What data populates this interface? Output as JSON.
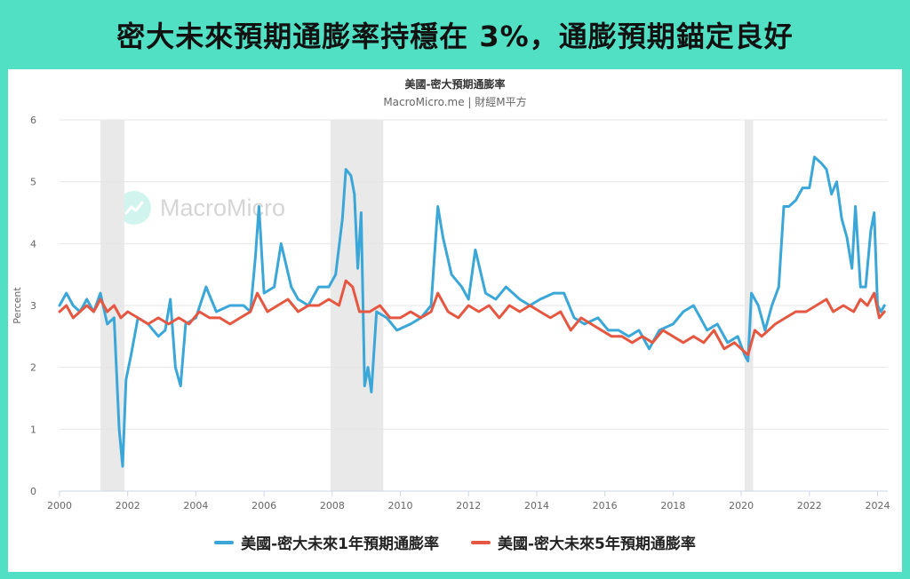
{
  "headline": "密大未來預期通膨率持穩在 3%，通膨預期錨定良好",
  "chart_data": {
    "type": "line",
    "title": "美國-密大預期通膨率",
    "subtitle": "MacroMicro.me | 財經M平方",
    "watermark": "MacroMicro",
    "ylabel": "Percent",
    "xlabel": "",
    "ylim": [
      0,
      6
    ],
    "xlim": [
      2000,
      2024.3
    ],
    "y_ticks": [
      0,
      1,
      2,
      3,
      4,
      5,
      6
    ],
    "x_ticks": [
      2000,
      2002,
      2004,
      2006,
      2008,
      2010,
      2012,
      2014,
      2016,
      2018,
      2020,
      2022,
      2024
    ],
    "grid": "horizontal",
    "legend_position": "bottom",
    "recessions": [
      [
        2001.2,
        2001.9
      ],
      [
        2007.95,
        2009.5
      ],
      [
        2020.1,
        2020.35
      ]
    ],
    "series": [
      {
        "name": "美國-密大未來1年預期通膨率",
        "color": "#3ba7d8",
        "points": [
          [
            2000.0,
            3.0
          ],
          [
            2000.2,
            3.2
          ],
          [
            2000.4,
            3.0
          ],
          [
            2000.6,
            2.9
          ],
          [
            2000.8,
            3.1
          ],
          [
            2001.0,
            2.9
          ],
          [
            2001.2,
            3.2
          ],
          [
            2001.4,
            2.7
          ],
          [
            2001.6,
            2.8
          ],
          [
            2001.75,
            1.0
          ],
          [
            2001.85,
            0.4
          ],
          [
            2001.95,
            1.8
          ],
          [
            2002.1,
            2.2
          ],
          [
            2002.3,
            2.8
          ],
          [
            2002.6,
            2.7
          ],
          [
            2002.9,
            2.5
          ],
          [
            2003.1,
            2.6
          ],
          [
            2003.25,
            3.1
          ],
          [
            2003.4,
            2.0
          ],
          [
            2003.55,
            1.7
          ],
          [
            2003.7,
            2.7
          ],
          [
            2004.0,
            2.8
          ],
          [
            2004.3,
            3.3
          ],
          [
            2004.6,
            2.9
          ],
          [
            2005.0,
            3.0
          ],
          [
            2005.4,
            3.0
          ],
          [
            2005.6,
            2.9
          ],
          [
            2005.75,
            3.8
          ],
          [
            2005.85,
            4.6
          ],
          [
            2006.0,
            3.2
          ],
          [
            2006.3,
            3.3
          ],
          [
            2006.5,
            4.0
          ],
          [
            2006.8,
            3.3
          ],
          [
            2007.0,
            3.1
          ],
          [
            2007.3,
            3.0
          ],
          [
            2007.6,
            3.3
          ],
          [
            2007.9,
            3.3
          ],
          [
            2008.1,
            3.5
          ],
          [
            2008.3,
            4.4
          ],
          [
            2008.4,
            5.2
          ],
          [
            2008.55,
            5.1
          ],
          [
            2008.65,
            4.8
          ],
          [
            2008.75,
            3.6
          ],
          [
            2008.85,
            4.5
          ],
          [
            2008.95,
            1.7
          ],
          [
            2009.05,
            2.0
          ],
          [
            2009.15,
            1.6
          ],
          [
            2009.3,
            2.9
          ],
          [
            2009.6,
            2.8
          ],
          [
            2009.9,
            2.6
          ],
          [
            2010.3,
            2.7
          ],
          [
            2010.6,
            2.8
          ],
          [
            2010.9,
            3.0
          ],
          [
            2011.1,
            4.6
          ],
          [
            2011.25,
            4.1
          ],
          [
            2011.5,
            3.5
          ],
          [
            2011.8,
            3.3
          ],
          [
            2012.0,
            3.1
          ],
          [
            2012.2,
            3.9
          ],
          [
            2012.5,
            3.2
          ],
          [
            2012.8,
            3.1
          ],
          [
            2013.1,
            3.3
          ],
          [
            2013.5,
            3.1
          ],
          [
            2013.8,
            3.0
          ],
          [
            2014.1,
            3.1
          ],
          [
            2014.5,
            3.2
          ],
          [
            2014.8,
            3.2
          ],
          [
            2015.1,
            2.8
          ],
          [
            2015.4,
            2.7
          ],
          [
            2015.8,
            2.8
          ],
          [
            2016.1,
            2.6
          ],
          [
            2016.4,
            2.6
          ],
          [
            2016.7,
            2.5
          ],
          [
            2017.0,
            2.6
          ],
          [
            2017.3,
            2.3
          ],
          [
            2017.6,
            2.6
          ],
          [
            2018.0,
            2.7
          ],
          [
            2018.3,
            2.9
          ],
          [
            2018.6,
            3.0
          ],
          [
            2018.8,
            2.8
          ],
          [
            2019.0,
            2.6
          ],
          [
            2019.3,
            2.7
          ],
          [
            2019.6,
            2.4
          ],
          [
            2019.9,
            2.5
          ],
          [
            2020.1,
            2.2
          ],
          [
            2020.2,
            2.1
          ],
          [
            2020.3,
            3.2
          ],
          [
            2020.5,
            3.0
          ],
          [
            2020.7,
            2.6
          ],
          [
            2020.9,
            3.0
          ],
          [
            2021.1,
            3.3
          ],
          [
            2021.25,
            4.6
          ],
          [
            2021.4,
            4.6
          ],
          [
            2021.6,
            4.7
          ],
          [
            2021.8,
            4.9
          ],
          [
            2022.0,
            4.9
          ],
          [
            2022.15,
            5.4
          ],
          [
            2022.35,
            5.3
          ],
          [
            2022.5,
            5.2
          ],
          [
            2022.65,
            4.8
          ],
          [
            2022.8,
            5.0
          ],
          [
            2022.95,
            4.4
          ],
          [
            2023.1,
            4.1
          ],
          [
            2023.25,
            3.6
          ],
          [
            2023.35,
            4.6
          ],
          [
            2023.5,
            3.3
          ],
          [
            2023.65,
            3.3
          ],
          [
            2023.8,
            4.2
          ],
          [
            2023.9,
            4.5
          ],
          [
            2024.0,
            3.0
          ],
          [
            2024.1,
            2.9
          ],
          [
            2024.2,
            3.0
          ]
        ]
      },
      {
        "name": "美國-密大未來5年預期通膨率",
        "color": "#e55741",
        "points": [
          [
            2000.0,
            2.9
          ],
          [
            2000.2,
            3.0
          ],
          [
            2000.4,
            2.8
          ],
          [
            2000.6,
            2.9
          ],
          [
            2000.8,
            3.0
          ],
          [
            2001.0,
            2.9
          ],
          [
            2001.2,
            3.1
          ],
          [
            2001.4,
            2.9
          ],
          [
            2001.6,
            3.0
          ],
          [
            2001.8,
            2.8
          ],
          [
            2002.0,
            2.9
          ],
          [
            2002.3,
            2.8
          ],
          [
            2002.6,
            2.7
          ],
          [
            2002.9,
            2.8
          ],
          [
            2003.2,
            2.7
          ],
          [
            2003.5,
            2.8
          ],
          [
            2003.8,
            2.7
          ],
          [
            2004.1,
            2.9
          ],
          [
            2004.4,
            2.8
          ],
          [
            2004.7,
            2.8
          ],
          [
            2005.0,
            2.7
          ],
          [
            2005.3,
            2.8
          ],
          [
            2005.6,
            2.9
          ],
          [
            2005.8,
            3.2
          ],
          [
            2006.1,
            2.9
          ],
          [
            2006.4,
            3.0
          ],
          [
            2006.7,
            3.1
          ],
          [
            2007.0,
            2.9
          ],
          [
            2007.3,
            3.0
          ],
          [
            2007.6,
            3.0
          ],
          [
            2007.9,
            3.1
          ],
          [
            2008.2,
            3.0
          ],
          [
            2008.4,
            3.4
          ],
          [
            2008.6,
            3.3
          ],
          [
            2008.8,
            2.9
          ],
          [
            2009.1,
            2.9
          ],
          [
            2009.4,
            3.0
          ],
          [
            2009.7,
            2.8
          ],
          [
            2010.0,
            2.8
          ],
          [
            2010.3,
            2.9
          ],
          [
            2010.6,
            2.8
          ],
          [
            2010.9,
            2.9
          ],
          [
            2011.1,
            3.2
          ],
          [
            2011.4,
            2.9
          ],
          [
            2011.7,
            2.8
          ],
          [
            2012.0,
            3.0
          ],
          [
            2012.3,
            2.9
          ],
          [
            2012.6,
            3.0
          ],
          [
            2012.9,
            2.8
          ],
          [
            2013.2,
            3.0
          ],
          [
            2013.5,
            2.9
          ],
          [
            2013.8,
            3.0
          ],
          [
            2014.1,
            2.9
          ],
          [
            2014.4,
            2.8
          ],
          [
            2014.7,
            2.9
          ],
          [
            2015.0,
            2.6
          ],
          [
            2015.3,
            2.8
          ],
          [
            2015.6,
            2.7
          ],
          [
            2015.9,
            2.6
          ],
          [
            2016.2,
            2.5
          ],
          [
            2016.5,
            2.5
          ],
          [
            2016.8,
            2.4
          ],
          [
            2017.1,
            2.5
          ],
          [
            2017.4,
            2.4
          ],
          [
            2017.7,
            2.6
          ],
          [
            2018.0,
            2.5
          ],
          [
            2018.3,
            2.4
          ],
          [
            2018.6,
            2.5
          ],
          [
            2018.9,
            2.4
          ],
          [
            2019.2,
            2.6
          ],
          [
            2019.5,
            2.3
          ],
          [
            2019.8,
            2.4
          ],
          [
            2020.0,
            2.3
          ],
          [
            2020.2,
            2.2
          ],
          [
            2020.4,
            2.6
          ],
          [
            2020.6,
            2.5
          ],
          [
            2020.8,
            2.6
          ],
          [
            2021.0,
            2.7
          ],
          [
            2021.3,
            2.8
          ],
          [
            2021.6,
            2.9
          ],
          [
            2021.9,
            2.9
          ],
          [
            2022.2,
            3.0
          ],
          [
            2022.5,
            3.1
          ],
          [
            2022.7,
            2.9
          ],
          [
            2023.0,
            3.0
          ],
          [
            2023.3,
            2.9
          ],
          [
            2023.5,
            3.1
          ],
          [
            2023.7,
            3.0
          ],
          [
            2023.9,
            3.2
          ],
          [
            2024.05,
            2.8
          ],
          [
            2024.2,
            2.9
          ]
        ]
      }
    ]
  }
}
